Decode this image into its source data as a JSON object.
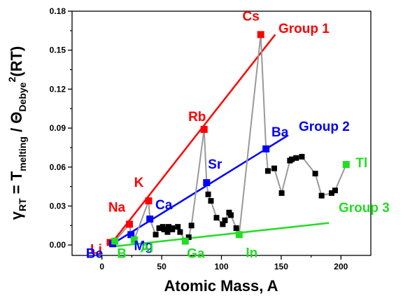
{
  "chart_data": {
    "type": "scatter",
    "xlabel": "Atomic Mass, A",
    "ylabel": {
      "gamma": "γ",
      "gamma_sub": "RT",
      "eq": " = T",
      "t_sub": "melting",
      "slash": " / Θ",
      "theta_sub": "Debye",
      "sup": "2",
      "tail": "(RT)"
    },
    "xlim": [
      -25,
      225
    ],
    "ylim": [
      -0.008,
      0.18
    ],
    "xticks": [
      0,
      50,
      100,
      150,
      200
    ],
    "yticks": [
      0.0,
      0.03,
      0.06,
      0.09,
      0.12,
      0.15,
      0.18
    ],
    "ytick_labels": [
      "0.00",
      "0.03",
      "0.06",
      "0.09",
      "0.12",
      "0.15",
      "0.18"
    ],
    "grid": false,
    "series": [
      {
        "color": "#000000",
        "line_color": "#999999",
        "connect": true,
        "points": [
          [
            6.9,
            0.002
          ],
          [
            9.0,
            0.001
          ],
          [
            10.8,
            0.003
          ],
          [
            23.0,
            0.016
          ],
          [
            24.3,
            0.008
          ],
          [
            27.0,
            0.004
          ],
          [
            39.1,
            0.034
          ],
          [
            40.1,
            0.02
          ],
          [
            45.0,
            0.008
          ],
          [
            47.9,
            0.013
          ],
          [
            50.9,
            0.014
          ],
          [
            52.0,
            0.012
          ],
          [
            54.9,
            0.01
          ],
          [
            55.8,
            0.014
          ],
          [
            58.9,
            0.012
          ],
          [
            58.7,
            0.013
          ],
          [
            63.5,
            0.014
          ],
          [
            65.4,
            0.01
          ],
          [
            69.7,
            0.003
          ],
          [
            72.6,
            0.006
          ],
          [
            74.9,
            0.015
          ],
          [
            85.5,
            0.089
          ],
          [
            87.6,
            0.048
          ],
          [
            88.9,
            0.039
          ],
          [
            91.2,
            0.034
          ],
          [
            95.9,
            0.021
          ],
          [
            101.1,
            0.016
          ],
          [
            102.9,
            0.019
          ],
          [
            106.4,
            0.025
          ],
          [
            107.9,
            0.023
          ],
          [
            112.4,
            0.013
          ],
          [
            114.8,
            0.008
          ],
          [
            132.9,
            0.162
          ],
          [
            137.3,
            0.074
          ],
          [
            138.9,
            0.057
          ],
          [
            144.2,
            0.059
          ],
          [
            150.4,
            0.04
          ],
          [
            157.3,
            0.065
          ],
          [
            158.9,
            0.066
          ],
          [
            162.5,
            0.067
          ],
          [
            167.3,
            0.068
          ],
          [
            178.5,
            0.055
          ],
          [
            183.8,
            0.038
          ],
          [
            192.2,
            0.04
          ],
          [
            195.1,
            0.042
          ],
          [
            204.4,
            0.062
          ]
        ]
      },
      {
        "name": "Group 1",
        "color": "#ff0000",
        "points": [
          [
            6.9,
            0.002
          ],
          [
            23.0,
            0.016
          ],
          [
            39.1,
            0.034
          ],
          [
            85.5,
            0.089
          ],
          [
            132.9,
            0.162
          ]
        ],
        "point_labels": [
          "Li",
          "Na",
          "K",
          "Rb",
          "Cs"
        ],
        "fit": [
          [
            6.9,
            0.0
          ],
          [
            145,
            0.162
          ]
        ]
      },
      {
        "name": "Group 2",
        "color": "#0000ff",
        "points": [
          [
            9.0,
            0.001
          ],
          [
            24.3,
            0.008
          ],
          [
            40.1,
            0.02
          ],
          [
            87.6,
            0.048
          ],
          [
            137.3,
            0.074
          ]
        ],
        "point_labels": [
          "Be",
          "Mg",
          "Ca",
          "Sr",
          "Ba"
        ],
        "fit": [
          [
            9.0,
            0.001
          ],
          [
            155,
            0.084
          ]
        ]
      },
      {
        "name": "Group 3",
        "color": "#22dd22",
        "points": [
          [
            10.8,
            0.003
          ],
          [
            27.0,
            0.004
          ],
          [
            69.7,
            0.003
          ],
          [
            114.8,
            0.008
          ],
          [
            204.4,
            0.062
          ]
        ],
        "point_labels": [
          "B",
          "Al",
          "Ga",
          "In",
          "Tl"
        ],
        "fit": [
          [
            10.8,
            -0.001
          ],
          [
            190,
            0.017
          ]
        ]
      }
    ]
  }
}
